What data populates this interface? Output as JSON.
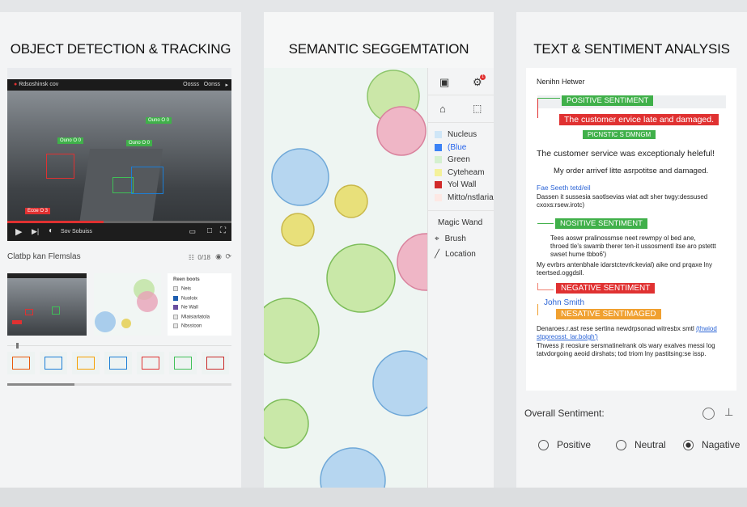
{
  "panels": {
    "detection": {
      "title": "OBJECT DETECTION & TRACKING",
      "video_title": "Rdsoshinsk cov",
      "video_menu": [
        "Oosss",
        "Oonss"
      ],
      "detections": [
        {
          "label": "Ouno O 0",
          "color": "#2fb344"
        },
        {
          "label": "Ouno O 0",
          "color": "#2fb344"
        },
        {
          "label": "Ouno O 0",
          "color": "#2fb344"
        },
        {
          "label": "Ecoe O 3",
          "color": "#e03131"
        }
      ],
      "player": {
        "time_label": "Sov Sobuiss",
        "progress": 0.43
      },
      "caption": "Clatbp kan Flemslas",
      "caption_count": "0/18",
      "legend_title": "Reen boots",
      "legend_items": [
        {
          "label": "Neis",
          "color": "#e6e6e6"
        },
        {
          "label": "Nuoloix",
          "color": "#1f5fb0"
        },
        {
          "label": "Ne Wall",
          "color": "#6a4fa0"
        },
        {
          "label": "Mlaisiarlatola",
          "color": "#e6e6e6"
        },
        {
          "label": "Nbsstoon",
          "color": "#e6e6e6"
        }
      ],
      "frame_colors": [
        "#e8590c",
        "#1c7ed6",
        "#f59f00",
        "#1c7ed6",
        "#e03131",
        "#40c057",
        "#c92a2a"
      ],
      "timeline_position": 0.04,
      "scroll_position": 0.3
    },
    "segmentation": {
      "title": "SEMANTIC SEGGEMTATION",
      "notification_count": "1",
      "classes": [
        {
          "label": "Nucleus",
          "color": "#cfe6f7",
          "text_color": "#333"
        },
        {
          "label": "(Blue",
          "color": "#3b82f6",
          "text_color": "#2563eb"
        },
        {
          "label": "Green",
          "color": "#d5f0d0",
          "text_color": "#333"
        },
        {
          "label": "Cyteheam",
          "color": "#f4f19a",
          "text_color": "#333"
        },
        {
          "label": "Yol Wall",
          "color": "#d12a2a",
          "text_color": "#333"
        },
        {
          "label": "Mitto/nstlaria",
          "color": "#fde8e4",
          "text_color": "#333"
        }
      ],
      "tools": [
        "Magic Wand",
        "Brush",
        "Location"
      ]
    },
    "sentiment": {
      "title": "TEXT & SENTIMENT ANALYSIS",
      "header": "Nenihn Hetwer",
      "badge1": "POSITIVE SENTIMENT",
      "highlight": "The customer ervice late and damaged.",
      "badge2": "PICNSTIC S DMNGM",
      "line1": "The customer service was exceptionaly heleful!",
      "line2": "My order arrivef litte asrpotitse and  damaged.",
      "link1": "Fae Seeth tetd/eil",
      "para1": [
        "Dassen it sussesia saotlsevias wiat adt sher twgy:dessused",
        "cxoxs:rsew.irotc)"
      ],
      "badge3": "NOSITIVE SENTIMENT",
      "para2": [
        "Tees aoswr pralinossmse neet rewmpy ol bed ane,",
        "throed tle's swamb therer ten-it ussosmentl itse aro pstettt",
        "swset hume tbbo6')"
      ],
      "para3": [
        "My evrbrs antenbhale idarstctevrk:kevial) aike ond prqaxe lny",
        "teertsed.oggdsll."
      ],
      "badge4": "NEGATIVE SENTIMENT",
      "name": "John Smith",
      "badge5": "NESATIVE SENTIMAGED",
      "para4a": "Denaroes.r.ast rese sertina newdrpsonad witresbx smtl",
      "para4link1": "(thwiod",
      "para4link2": "stppreosst. lar.bolgh')",
      "para5": [
        "Thwess jt reosiure sersmatinelrank ols wary exalves messi log",
        "tatvdorgoing aeoid dirshats; tod triom lny pastitsing:se issp."
      ],
      "overall_label": "Overall Sentiment:",
      "options": [
        {
          "label": "Positive",
          "selected": false
        },
        {
          "label": "Neutral",
          "selected": false
        },
        {
          "label": "Nagative",
          "selected": true
        }
      ],
      "colors": {
        "positive": "#40b04a",
        "negative": "#e03131",
        "warning": "#f0a030",
        "link": "#2b64d6"
      }
    }
  }
}
